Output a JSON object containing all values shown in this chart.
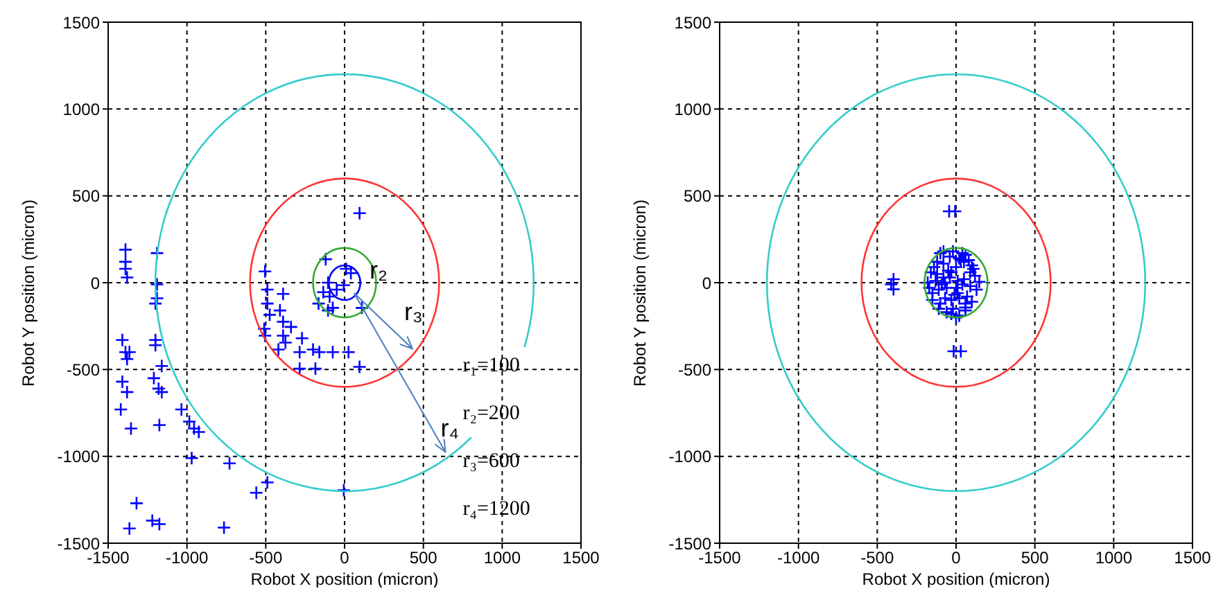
{
  "chart_data": [
    {
      "type": "scatter",
      "xlabel": "Robot X position (micron)",
      "ylabel": "Robot Y position (micron)",
      "xlim": [
        -1500,
        1500
      ],
      "ylim": [
        -1500,
        1500
      ],
      "xticks": [
        -1500,
        -1000,
        -500,
        0,
        500,
        1000,
        1500
      ],
      "yticks": [
        -1500,
        -1000,
        -500,
        0,
        500,
        1000,
        1500
      ],
      "grid": true,
      "legend": false,
      "annotations": [
        "r₂",
        "r₃",
        "r₄",
        "r₁=100",
        "r₂=200",
        "r₃=600",
        "r₄=1200"
      ],
      "series": [
        {
          "color": "#0000ff",
          "marker": "cross",
          "x": [
            -1390,
            -1390,
            -1390,
            -1380,
            -1190,
            -1190,
            -1190,
            -1200,
            -1410,
            -1390,
            -1380,
            -1365,
            -1200,
            -1200,
            -1160,
            -1410,
            -1380,
            -1420,
            -1355,
            -1210,
            -1180,
            -1160,
            -1175,
            -1035,
            -985,
            -955,
            -925,
            -970,
            -730,
            -560,
            -490,
            -1320,
            -1365,
            -1220,
            -1175,
            -765,
            -5,
            95,
            -505,
            -490,
            -390,
            -490,
            -475,
            -510,
            -505,
            -410,
            -390,
            -390,
            -375,
            -420,
            -270,
            -285,
            -200,
            -160,
            -75,
            25,
            -285,
            -185,
            95,
            -340,
            -120,
            -105,
            -95,
            -105,
            -75,
            -50,
            10,
            40,
            -5,
            110,
            -135,
            -165
          ],
          "values": [
            190,
            120,
            80,
            30,
            170,
            -10,
            -90,
            -120,
            -330,
            -400,
            -440,
            -400,
            -330,
            -360,
            -480,
            -570,
            -630,
            -730,
            -840,
            -550,
            -610,
            -630,
            -820,
            -730,
            -800,
            -840,
            -860,
            -1010,
            -1040,
            -1210,
            -1150,
            -1270,
            -1415,
            -1370,
            -1390,
            -1410,
            -1195,
            400,
            65,
            -40,
            -65,
            -120,
            -185,
            -265,
            -305,
            -160,
            -225,
            -305,
            -345,
            -385,
            -320,
            -400,
            -385,
            -400,
            -400,
            -400,
            -495,
            -495,
            -485,
            -255,
            135,
            0,
            -80,
            -160,
            -145,
            -40,
            80,
            55,
            -15,
            -145,
            -55,
            -120
          ]
        }
      ]
    },
    {
      "type": "scatter",
      "xlabel": "Robot X position (micron)",
      "ylabel": "Robot Y position (micron)",
      "xlim": [
        -1500,
        1500
      ],
      "ylim": [
        -1500,
        1500
      ],
      "xticks": [
        -1500,
        -1000,
        -500,
        0,
        500,
        1000,
        1500
      ],
      "yticks": [
        -1500,
        -1000,
        -500,
        0,
        500,
        1000,
        1500
      ],
      "grid": true,
      "legend": false,
      "series": [
        {
          "color": "#0000ff",
          "marker": "cross",
          "x": [
            -412,
            -397,
            -397,
            -44,
            -6,
            -15,
            30,
            147,
            59,
            -180,
            -160,
            -150,
            -120,
            -100,
            -80,
            -60,
            -40,
            -20,
            0,
            20,
            40,
            60,
            80,
            100,
            120,
            -170,
            -140,
            -110,
            -70,
            -30,
            10,
            50,
            90,
            130,
            -150,
            -110,
            -70,
            -30,
            10,
            50,
            90,
            -120,
            -80,
            -40,
            0,
            40,
            -100,
            -60,
            -20,
            20,
            60,
            100,
            -130,
            -90,
            -50,
            -10,
            30,
            70,
            110,
            -80,
            -30,
            20,
            60,
            0
          ],
          "values": [
            -10,
            20,
            -38,
            411,
            411,
            -395,
            -395,
            5,
            -143,
            0,
            60,
            -60,
            120,
            -120,
            30,
            -30,
            150,
            -150,
            90,
            -90,
            170,
            160,
            130,
            100,
            40,
            -30,
            90,
            -40,
            0,
            60,
            -60,
            20,
            -20,
            -40,
            -100,
            -150,
            -90,
            -100,
            10,
            120,
            60,
            50,
            110,
            30,
            -30,
            -10,
            170,
            -170,
            180,
            140,
            -120,
            -110,
            10,
            -10,
            70,
            -70,
            130,
            -80,
            80,
            180,
            -180,
            -190,
            -160,
            -200
          ]
        }
      ]
    }
  ]
}
